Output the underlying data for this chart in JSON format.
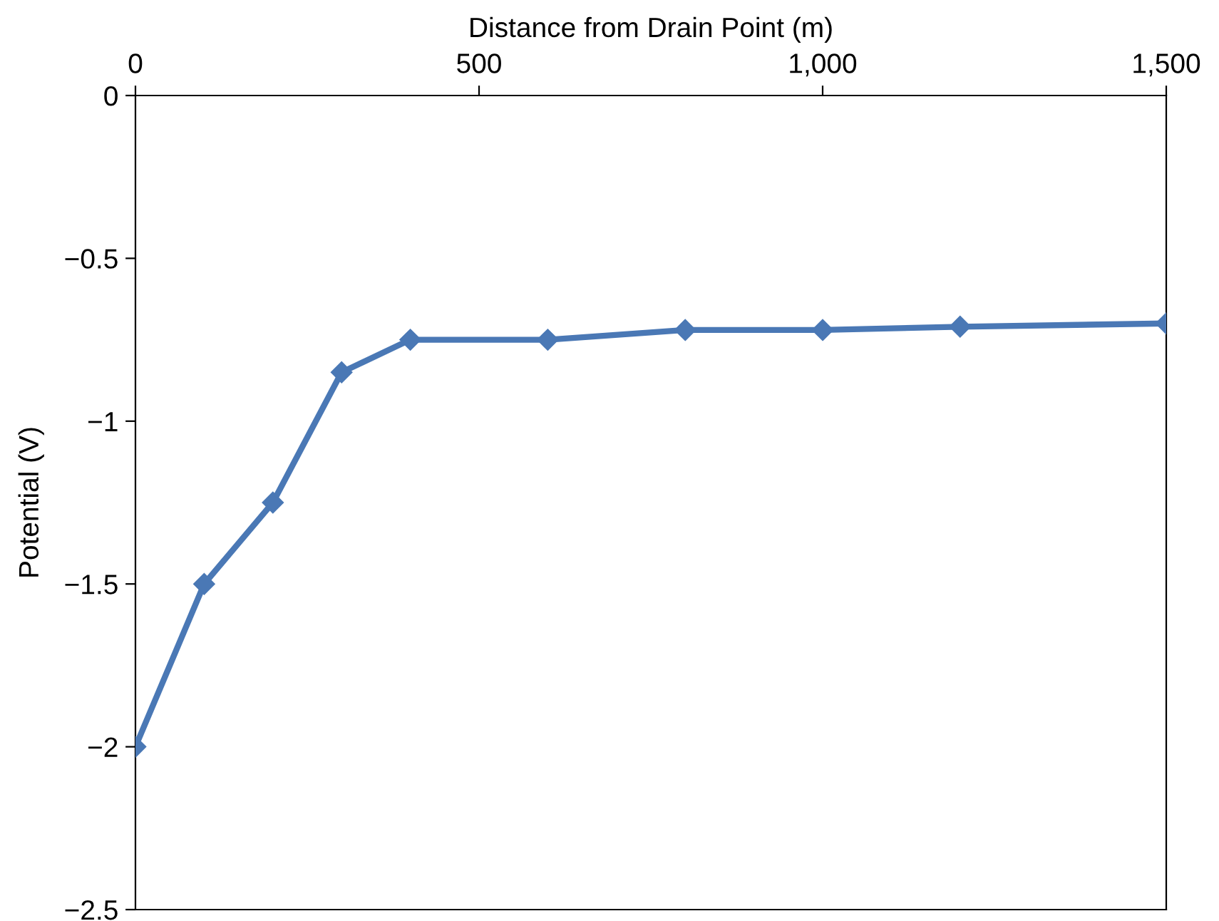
{
  "chart_data": {
    "type": "line",
    "xlabel": "Distance from Drain Point (m)",
    "ylabel": "Potential (V)",
    "x": [
      0,
      100,
      200,
      300,
      400,
      600,
      800,
      1000,
      1200,
      1500
    ],
    "series": [
      {
        "color": "#4a78b5",
        "values": [
          -2.0,
          -1.5,
          -1.25,
          -0.85,
          -0.75,
          -0.75,
          -0.72,
          -0.72,
          -0.71,
          -0.7
        ]
      }
    ],
    "xlim": [
      0,
      1500
    ],
    "xticks": [
      0,
      500,
      {
        "value": 1000,
        "label": "1,000"
      },
      {
        "value": 1500,
        "label": "1,500"
      }
    ],
    "ylim": [
      -2.5,
      0
    ],
    "yticks": [
      0,
      {
        "value": -0.5,
        "label": "−0.5"
      },
      {
        "value": -1,
        "label": "−1"
      },
      {
        "value": -1.5,
        "label": "−1.5"
      },
      {
        "value": -2,
        "label": "−2"
      },
      {
        "value": -2.5,
        "label": "−2.5"
      }
    ],
    "marker": "diamond",
    "line_style": "solid",
    "grid": false,
    "legend": false
  }
}
